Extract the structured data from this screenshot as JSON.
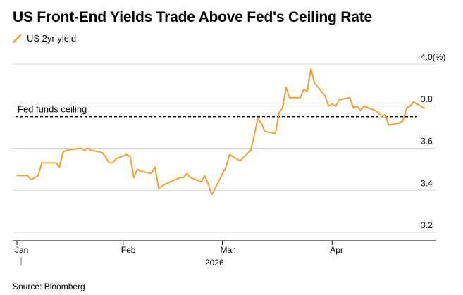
{
  "title": "US Front-End Yields Trade Above Fed's Ceiling Rate",
  "source": "Source: Bloomberg",
  "colors": {
    "series": "#f5a030",
    "grid": "#d9d9d9",
    "axis": "#000000",
    "reference": "#000000"
  },
  "chart_data": {
    "type": "line",
    "title": "US Front-End Yields Trade Above Fed's Ceiling Rate",
    "legend_placement": "top-left",
    "grid": true,
    "x_ticks": [
      "Jan",
      "Feb",
      "Mar",
      "Apr"
    ],
    "x_year_label": "2026",
    "y_axis_side": "right",
    "y_ticks": [
      {
        "value": 3.2,
        "label": "3.2"
      },
      {
        "value": 3.4,
        "label": "3.4"
      },
      {
        "value": 3.6,
        "label": "3.6"
      },
      {
        "value": 3.8,
        "label": "3.8"
      },
      {
        "value": 4.0,
        "label": "4.0(%)"
      }
    ],
    "ylim": [
      3.2,
      4.0
    ],
    "xlim": [
      "2026-01-02",
      "2026-05-01"
    ],
    "reference_line": {
      "value": 3.75,
      "label": "Fed funds ceiling",
      "style": "dashed"
    },
    "series": [
      {
        "name": "US 2yr yield",
        "color": "#f5a030",
        "x": [
          "2026-01-02",
          "2026-01-05",
          "2026-01-06",
          "2026-01-07",
          "2026-01-08",
          "2026-01-09",
          "2026-01-12",
          "2026-01-13",
          "2026-01-14",
          "2026-01-15",
          "2026-01-16",
          "2026-01-20",
          "2026-01-21",
          "2026-01-22",
          "2026-01-23",
          "2026-01-26",
          "2026-01-27",
          "2026-01-28",
          "2026-01-29",
          "2026-01-30",
          "2026-02-02",
          "2026-02-03",
          "2026-02-04",
          "2026-02-05",
          "2026-02-06",
          "2026-02-09",
          "2026-02-10",
          "2026-02-11",
          "2026-02-12",
          "2026-02-13",
          "2026-02-17",
          "2026-02-18",
          "2026-02-19",
          "2026-02-20",
          "2026-02-23",
          "2026-02-24",
          "2026-02-25",
          "2026-02-26",
          "2026-02-27",
          "2026-03-02",
          "2026-03-03",
          "2026-03-04",
          "2026-03-05",
          "2026-03-06",
          "2026-03-09",
          "2026-03-10",
          "2026-03-11",
          "2026-03-12",
          "2026-03-13",
          "2026-03-16",
          "2026-03-17",
          "2026-03-18",
          "2026-03-19",
          "2026-03-20",
          "2026-03-23",
          "2026-03-24",
          "2026-03-25",
          "2026-03-26",
          "2026-03-27",
          "2026-03-30",
          "2026-03-31",
          "2026-04-01",
          "2026-04-02",
          "2026-04-03",
          "2026-04-06",
          "2026-04-07",
          "2026-04-08",
          "2026-04-09",
          "2026-04-10",
          "2026-04-13",
          "2026-04-14",
          "2026-04-15",
          "2026-04-16",
          "2026-04-17",
          "2026-04-20",
          "2026-04-21",
          "2026-04-22",
          "2026-04-23",
          "2026-04-24",
          "2026-04-27"
        ],
        "values": [
          3.47,
          3.47,
          3.45,
          3.46,
          3.47,
          3.53,
          3.53,
          3.53,
          3.51,
          3.58,
          3.59,
          3.6,
          3.59,
          3.6,
          3.59,
          3.58,
          3.56,
          3.53,
          3.53,
          3.55,
          3.57,
          3.56,
          3.46,
          3.5,
          3.49,
          3.48,
          3.51,
          3.41,
          3.42,
          3.43,
          3.46,
          3.46,
          3.48,
          3.46,
          3.44,
          3.47,
          3.43,
          3.38,
          3.41,
          3.51,
          3.57,
          3.56,
          3.55,
          3.54,
          3.59,
          3.66,
          3.74,
          3.72,
          3.68,
          3.67,
          3.77,
          3.79,
          3.89,
          3.84,
          3.84,
          3.88,
          3.87,
          3.98,
          3.91,
          3.85,
          3.8,
          3.81,
          3.8,
          3.83,
          3.84,
          3.79,
          3.8,
          3.78,
          3.8,
          3.78,
          3.77,
          3.75,
          3.76,
          3.71,
          3.72,
          3.73,
          3.79,
          3.8,
          3.82,
          3.79
        ]
      }
    ]
  }
}
